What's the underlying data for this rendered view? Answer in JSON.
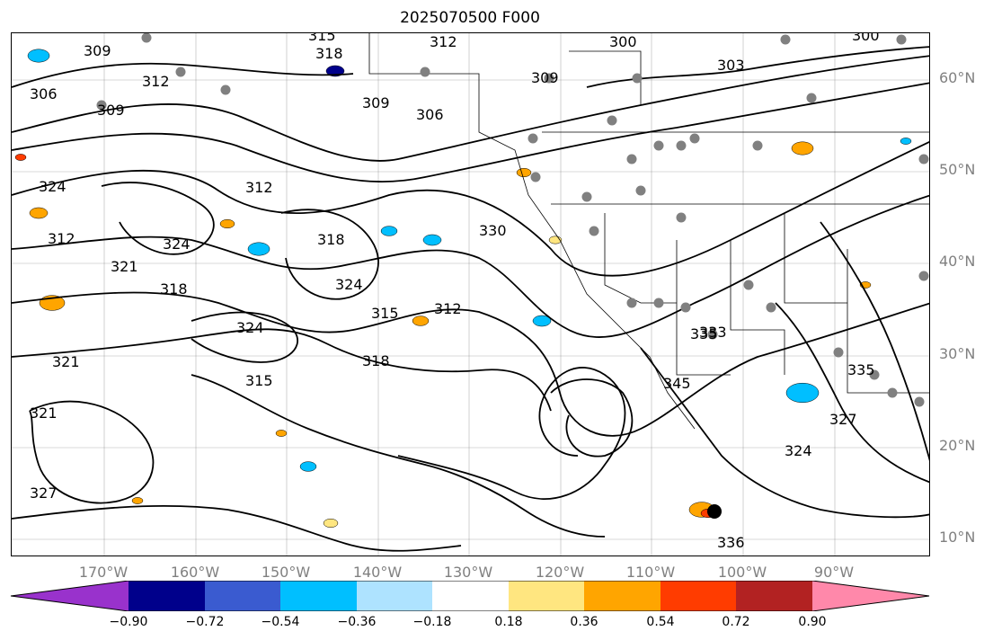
{
  "title": "2025070500 F000",
  "lat_labels": [
    "60°N",
    "50°N",
    "40°N",
    "30°N",
    "20°N",
    "10°N"
  ],
  "lon_labels": [
    "170°W",
    "160°W",
    "150°W",
    "140°W",
    "130°W",
    "120°W",
    "110°W",
    "100°W",
    "90°W"
  ],
  "contour_labels": [
    "309",
    "315",
    "312",
    "318",
    "300",
    "303",
    "300",
    "309",
    "312",
    "309",
    "306",
    "309",
    "306",
    "324",
    "312",
    "312",
    "324",
    "321",
    "318",
    "324",
    "324",
    "315",
    "312",
    "318",
    "315",
    "321",
    "321",
    "327",
    "318",
    "330",
    "335",
    "345",
    "335",
    "327",
    "324",
    "333",
    "336"
  ],
  "colorbar": {
    "ticks": [
      "−0.90",
      "−0.72",
      "−0.54",
      "−0.36",
      "−0.18",
      "0.18",
      "0.36",
      "0.54",
      "0.72",
      "0.90"
    ],
    "colors": [
      "#9932cc",
      "#00008b",
      "#3a5bd0",
      "#00bfff",
      "#aee3ff",
      "#ffffff",
      "#ffe680",
      "#ffa500",
      "#ff3c00",
      "#b22222",
      "#ff88aa"
    ]
  },
  "feature_colors": {
    "contour": "#000000",
    "station_marker": "#808080",
    "gridline": "#808080",
    "land_border": "#000000"
  }
}
